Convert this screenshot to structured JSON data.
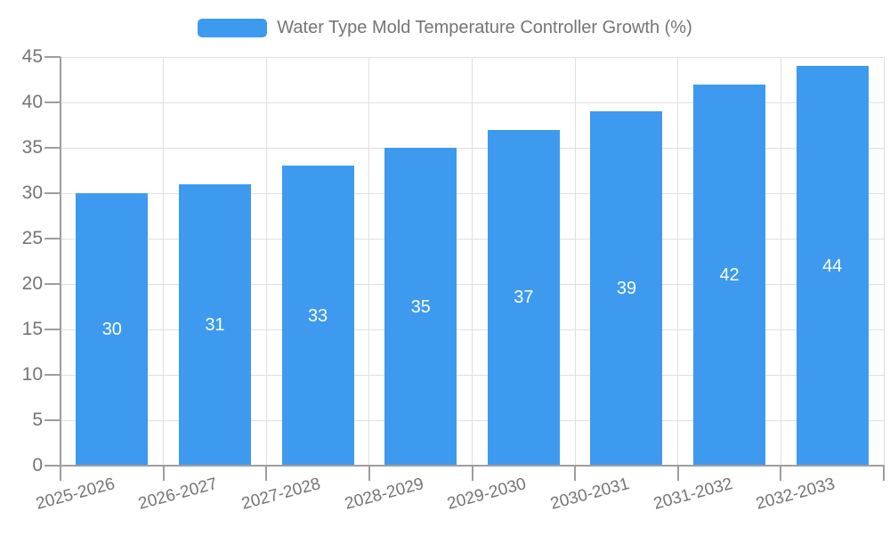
{
  "legend": {
    "label": "Water Type Mold Temperature Controller Growth (%)"
  },
  "chart_data": {
    "type": "bar",
    "title": "Water Type Mold Temperature Controller Growth (%)",
    "series_name": "Water Type Mold Temperature Controller Growth (%)",
    "categories": [
      "2025-2026",
      "2026-2027",
      "2027-2028",
      "2028-2029",
      "2029-2030",
      "2030-2031",
      "2031-2032",
      "2032-2033"
    ],
    "values": [
      30,
      31,
      33,
      35,
      37,
      39,
      42,
      44
    ],
    "value_labels": [
      "30",
      "31",
      "33",
      "35",
      "37",
      "39",
      "42",
      "44"
    ],
    "xlabel": "",
    "ylabel": "",
    "ylim": [
      0,
      45
    ],
    "yticks": [
      0,
      5,
      10,
      15,
      20,
      25,
      30,
      35,
      40,
      45
    ],
    "grid": true,
    "legend_position": "top-center",
    "x_label_rotation_deg": -15,
    "colors": {
      "bar": "#3D9AEF",
      "value_label": "#ffffff",
      "axis_line": "#9e9e9e",
      "gridline": "#e0e0e0",
      "axis_text": "#757575",
      "background": "#ffffff"
    }
  }
}
